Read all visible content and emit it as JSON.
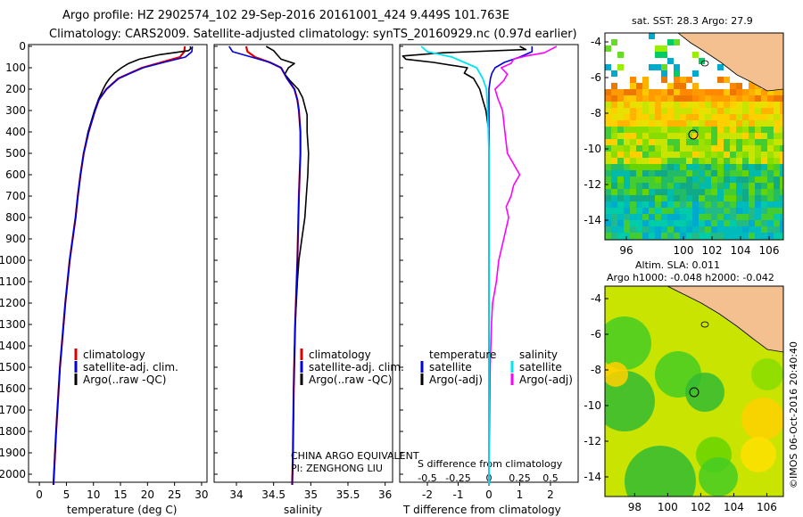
{
  "header": {
    "line1": "Argo profile: HZ 2902574_102 29-Sep-2016 20161001_424 9.449S 101.763E",
    "line2": "Climatology: CARS2009. Satellite-adjusted climatology: synTS_20160929.nc (0.97d earlier)"
  },
  "side_stamp": "©IMOS 06-Oct-2016 20:40:40",
  "depth_ticks": [
    "0",
    "100",
    "200",
    "300",
    "400",
    "500",
    "600",
    "700",
    "800",
    "900",
    "1000",
    "1100",
    "1200",
    "1300",
    "1400",
    "1500",
    "1600",
    "1700",
    "1800",
    "1900",
    "2000"
  ],
  "colors": {
    "climatology": "#dd0000",
    "satellite": "#0000dd",
    "argo": "#000000",
    "sal_satellite": "#00e5ee",
    "sal_argo": "#ff00ff",
    "land": "#f5c090"
  },
  "chart_data": [
    {
      "type": "line",
      "xlabel": "temperature (deg C)",
      "ylabel": "",
      "xlim": [
        -2,
        31
      ],
      "ylim": [
        2070,
        0
      ],
      "xticks": [
        "0",
        "5",
        "10",
        "15",
        "20",
        "25",
        "30"
      ],
      "legend": [
        "climatology",
        "satellite-adj. clim.",
        "Argo(..raw -QC)"
      ],
      "legend_position": "bottom-center",
      "series": [
        {
          "name": "climatology",
          "depth": [
            0,
            25,
            50,
            75,
            100,
            125,
            150,
            200,
            250,
            300,
            400,
            500,
            600,
            700,
            800,
            1000,
            1200,
            1500,
            1800,
            2050
          ],
          "values": [
            26.9,
            26.8,
            26.0,
            22.5,
            19.0,
            16.8,
            14.6,
            12.4,
            11.0,
            10.3,
            9.1,
            8.2,
            7.6,
            7.1,
            6.7,
            5.6,
            4.8,
            3.8,
            3.1,
            2.6
          ]
        },
        {
          "name": "satellite-adj. clim.",
          "depth": [
            0,
            25,
            50,
            75,
            100,
            125,
            150,
            200,
            250,
            300,
            400,
            500,
            600,
            700,
            800,
            1000,
            1200,
            1500,
            1800,
            2050
          ],
          "values": [
            28.3,
            28.2,
            27.0,
            23.0,
            19.2,
            16.9,
            14.7,
            12.4,
            11.0,
            10.3,
            9.1,
            8.2,
            7.6,
            7.1,
            6.7,
            5.6,
            4.8,
            3.8,
            3.1,
            2.6
          ]
        },
        {
          "name": "Argo(..raw -QC)",
          "depth": [
            0,
            10,
            20,
            40,
            60,
            80,
            100,
            125,
            150,
            175,
            200,
            250,
            300,
            400,
            500,
            600,
            700,
            800,
            1000,
            1200,
            1500,
            1800,
            2050
          ],
          "values": [
            27.9,
            28.0,
            27.6,
            22.0,
            18.5,
            16.5,
            15.2,
            13.9,
            13.0,
            12.3,
            11.8,
            10.9,
            10.2,
            9.0,
            8.2,
            7.6,
            7.1,
            6.7,
            5.6,
            4.8,
            3.8,
            3.1,
            2.6
          ]
        }
      ]
    },
    {
      "type": "line",
      "xlabel": "salinity",
      "ylabel": "",
      "xlim": [
        33.7,
        36.1
      ],
      "ylim": [
        2070,
        0
      ],
      "xticks": [
        "34",
        "34.5",
        "35",
        "35.5",
        "36"
      ],
      "legend": [
        "climatology",
        "satellite-adj. clim.",
        "Argo(..raw -QC)"
      ],
      "legend_position": "bottom-center",
      "annotations": [
        "CHINA ARGO EQUIVALENT",
        "PI: ZENGHONG LIU"
      ],
      "series": [
        {
          "name": "climatology",
          "depth": [
            0,
            25,
            50,
            75,
            100,
            150,
            200,
            250,
            300,
            400,
            500,
            700,
            1000,
            1300,
            1600,
            1900,
            2050
          ],
          "values": [
            34.13,
            34.15,
            34.25,
            34.45,
            34.6,
            34.68,
            34.78,
            34.82,
            34.84,
            34.86,
            34.86,
            34.84,
            34.82,
            34.79,
            34.77,
            34.76,
            34.75
          ]
        },
        {
          "name": "satellite-adj. clim.",
          "depth": [
            0,
            25,
            50,
            75,
            100,
            150,
            200,
            250,
            300,
            400,
            500,
            700,
            1000,
            1300,
            1600,
            1900,
            2050
          ],
          "values": [
            33.9,
            33.95,
            34.2,
            34.45,
            34.6,
            34.68,
            34.78,
            34.82,
            34.84,
            34.86,
            34.86,
            34.84,
            34.82,
            34.79,
            34.77,
            34.76,
            34.75
          ]
        },
        {
          "name": "Argo(..raw -QC)",
          "depth": [
            0,
            20,
            40,
            60,
            80,
            100,
            130,
            160,
            200,
            240,
            280,
            320,
            400,
            500,
            600,
            700,
            800,
            900,
            1000,
            1100,
            1300,
            1600,
            1900,
            2050
          ],
          "values": [
            34.4,
            34.5,
            34.55,
            34.6,
            34.78,
            34.7,
            34.65,
            34.72,
            34.83,
            34.89,
            34.92,
            34.95,
            34.95,
            34.97,
            34.96,
            34.94,
            34.92,
            34.88,
            34.84,
            34.82,
            34.79,
            34.77,
            34.76,
            34.75
          ]
        }
      ]
    },
    {
      "type": "line",
      "xlabel": "T difference from climatology",
      "top_label": "S difference from climatology",
      "ylabel": "",
      "xlim": [
        -2.9,
        2.9
      ],
      "ylim": [
        2070,
        0
      ],
      "xticks": [
        "-2",
        "-1",
        "0",
        "1",
        "2"
      ],
      "top_xticks": [
        "-0.5",
        "-0.25",
        "0",
        "0.25",
        "0.5"
      ],
      "legend_groups": [
        {
          "heading": "temperature",
          "items": [
            "satellite",
            "Argo(-adj)"
          ]
        },
        {
          "heading": "salinity",
          "items": [
            "satellite",
            "Argo(-adj)"
          ]
        }
      ],
      "series": [
        {
          "name": "temperature satellite",
          "depth": [
            0,
            25,
            50,
            75,
            100,
            125,
            150,
            200,
            300,
            500,
            2050
          ],
          "values": [
            1.4,
            1.4,
            1.0,
            0.5,
            0.2,
            0.1,
            0.05,
            0,
            0,
            0,
            0
          ]
        },
        {
          "name": "temperature Argo(-adj)",
          "depth": [
            0,
            15,
            30,
            45,
            60,
            75,
            100,
            125,
            150,
            200,
            250,
            300,
            400,
            500,
            600,
            700,
            800,
            900,
            1000,
            1200,
            1500,
            2050
          ],
          "values": [
            1.0,
            1.2,
            -1.5,
            -2.8,
            -2.7,
            -1.8,
            -0.7,
            -0.8,
            -0.5,
            -0.3,
            -0.2,
            -0.1,
            0,
            0,
            0,
            0,
            0,
            0,
            0,
            0,
            0,
            0
          ]
        },
        {
          "name": "salinity satellite",
          "depth": [
            0,
            25,
            50,
            75,
            100,
            150,
            200,
            300,
            500,
            1000,
            2050
          ],
          "values": [
            -0.55,
            -0.5,
            -0.3,
            -0.2,
            -0.1,
            -0.05,
            -0.02,
            -0.01,
            0,
            0,
            0
          ]
        },
        {
          "name": "salinity Argo(-adj)",
          "depth": [
            0,
            15,
            30,
            45,
            60,
            80,
            100,
            130,
            160,
            200,
            240,
            300,
            400,
            500,
            550,
            600,
            650,
            700,
            750,
            800,
            900,
            1000,
            1100,
            1200,
            1300,
            1500,
            2050
          ],
          "values": [
            0.55,
            0.5,
            0.45,
            0.3,
            0.2,
            0.18,
            0.1,
            0.15,
            0.12,
            0.05,
            0.07,
            0.11,
            0.13,
            0.15,
            0.2,
            0.25,
            0.2,
            0.18,
            0.14,
            0.16,
            0.12,
            0.08,
            0.06,
            0.03,
            0.02,
            0.01,
            0
          ]
        }
      ]
    },
    {
      "type": "heatmap",
      "title": "sat. SST: 28.3  Argo: 27.9",
      "xticks": [
        "96",
        "100",
        "102",
        "104",
        "106"
      ],
      "yticks": [
        "-4",
        "-6",
        "-8",
        "-10",
        "-12",
        "-14"
      ],
      "xlim": [
        94.5,
        107
      ],
      "ylim": [
        -15.1,
        -3.5
      ],
      "marker": {
        "lon": 101.763,
        "lat": -9.449
      }
    },
    {
      "type": "heatmap",
      "title_lines": [
        "Altim. SLA: 0.011",
        "Argo h1000: -0.048 h2000: -0.042"
      ],
      "xticks": [
        "98",
        "100",
        "102",
        "104",
        "106"
      ],
      "yticks": [
        "-4",
        "-6",
        "-8",
        "-10",
        "-12",
        "-14"
      ],
      "xlim": [
        96.2,
        107
      ],
      "ylim": [
        -15.1,
        -3.3
      ],
      "marker": {
        "lon": 101.763,
        "lat": -9.449
      }
    }
  ]
}
